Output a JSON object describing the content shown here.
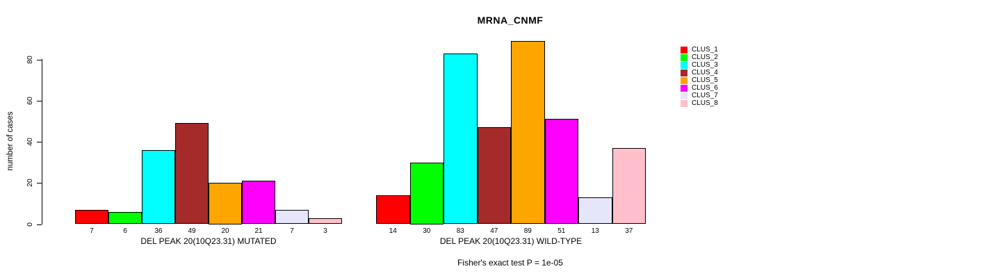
{
  "chart": {
    "title": "MRNA_CNMF",
    "ylabel": "number of cases",
    "annotation": "Fisher's exact test P = 1e-05"
  },
  "chart_data": {
    "type": "bar",
    "title": "MRNA_CNMF",
    "xlabel": "",
    "ylabel": "number of cases",
    "ylim": [
      0,
      89
    ],
    "y_ticks": [
      0,
      20,
      40,
      60,
      80
    ],
    "grid": false,
    "legend_position": "right",
    "categories": [
      "CLUS_1",
      "CLUS_2",
      "CLUS_3",
      "CLUS_4",
      "CLUS_5",
      "CLUS_6",
      "CLUS_7",
      "CLUS_8"
    ],
    "colors": [
      "#FF0000",
      "#00FF00",
      "#00FFFF",
      "#A52A2A",
      "#FFA500",
      "#FF00FF",
      "#E6E6FA",
      "#FFC0CB"
    ],
    "series": [
      {
        "name": "DEL PEAK 20(10Q23.31) MUTATED",
        "values": [
          7,
          6,
          36,
          49,
          20,
          21,
          7,
          3
        ]
      },
      {
        "name": "DEL PEAK 20(10Q23.31) WILD-TYPE",
        "values": [
          14,
          30,
          83,
          47,
          89,
          51,
          13,
          37
        ]
      }
    ],
    "annotation": "Fisher's exact test P = 1e-05"
  },
  "legend": {
    "items": [
      {
        "label": "CLUS_1",
        "color": "#FF0000"
      },
      {
        "label": "CLUS_2",
        "color": "#00FF00"
      },
      {
        "label": "CLUS_3",
        "color": "#00FFFF"
      },
      {
        "label": "CLUS_4",
        "color": "#A52A2A"
      },
      {
        "label": "CLUS_5",
        "color": "#FFA500"
      },
      {
        "label": "CLUS_6",
        "color": "#FF00FF"
      },
      {
        "label": "CLUS_7",
        "color": "#E6E6FA"
      },
      {
        "label": "CLUS_8",
        "color": "#FFC0CB"
      }
    ]
  }
}
